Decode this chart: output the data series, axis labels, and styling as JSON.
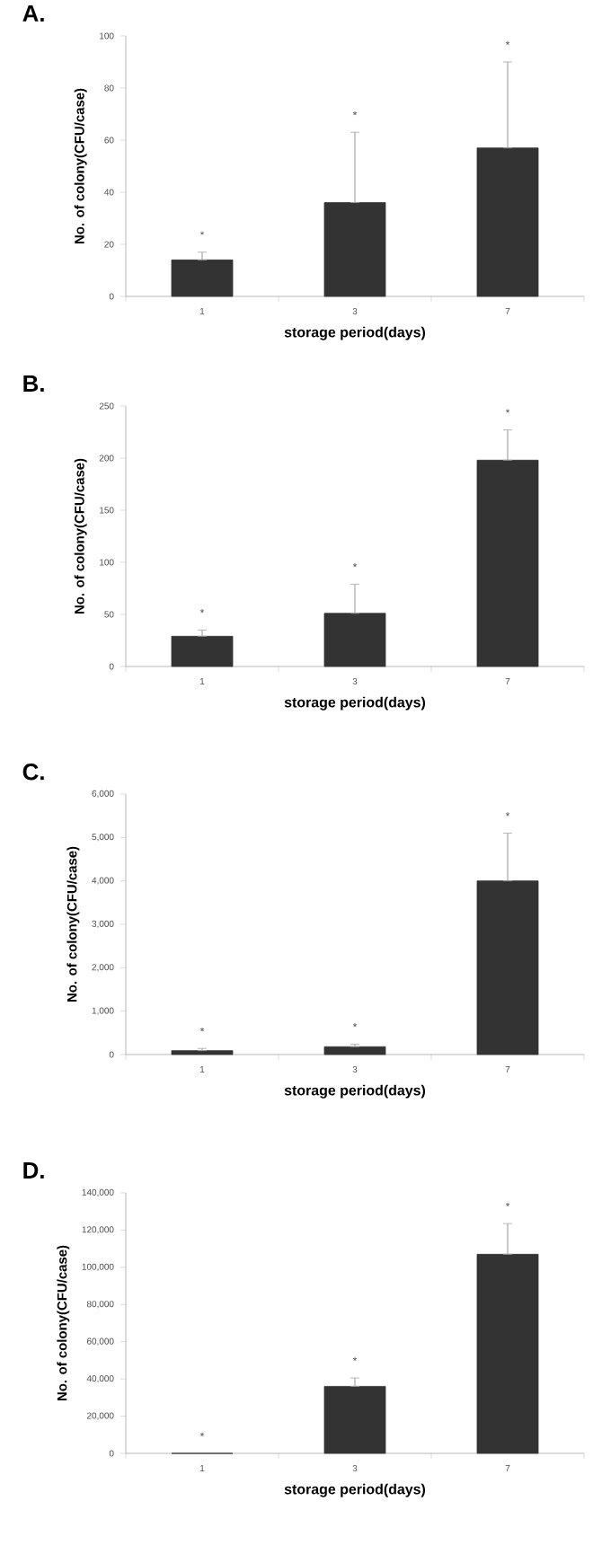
{
  "chart_data": [
    {
      "type": "bar",
      "title": "A.",
      "xlabel": "storage period(days)",
      "ylabel": "No. of colony(CFU/case)",
      "categories": [
        "1",
        "3",
        "7"
      ],
      "values": [
        14,
        36,
        57
      ],
      "errors": [
        [
          14,
          17
        ],
        [
          36,
          63
        ],
        [
          57,
          90
        ]
      ],
      "color": "#333333",
      "ylim": [
        0,
        100
      ],
      "yticks": [
        0,
        20,
        40,
        60,
        80,
        100
      ],
      "annotations": [
        "*",
        "*",
        "*"
      ]
    },
    {
      "type": "bar",
      "title": "B.",
      "xlabel": "storage period(days)",
      "ylabel": "No. of colony(CFU/case)",
      "categories": [
        "1",
        "3",
        "7"
      ],
      "values": [
        29,
        51,
        198
      ],
      "errors": [
        [
          29,
          35
        ],
        [
          51,
          79
        ],
        [
          198,
          227
        ]
      ],
      "color": "#333333",
      "ylim": [
        0,
        250
      ],
      "yticks": [
        0,
        50,
        100,
        150,
        200,
        250
      ],
      "annotations": [
        "*",
        "*",
        "*"
      ]
    },
    {
      "type": "bar",
      "title": "C.",
      "xlabel": "storage period(days)",
      "ylabel": "No. of colony(CFU/case)",
      "categories": [
        "1",
        "3",
        "7"
      ],
      "values": [
        90,
        180,
        4000
      ],
      "errors": [
        [
          90,
          140
        ],
        [
          180,
          240
        ],
        [
          4000,
          5100
        ]
      ],
      "color": "#333333",
      "ylim": [
        0,
        6000
      ],
      "yticks": [
        0,
        {
          "value": 1000,
          "label": "1,000"
        },
        {
          "value": 2000,
          "label": "2,000"
        },
        {
          "value": 3000,
          "label": "3,000"
        },
        {
          "value": 4000,
          "label": "4,000"
        },
        {
          "value": 5000,
          "label": "5,000"
        },
        {
          "value": 6000,
          "label": "6,000"
        }
      ],
      "annotations": [
        "*",
        "*",
        "*"
      ]
    },
    {
      "type": "bar",
      "title": "D.",
      "xlabel": "storage period(days)",
      "ylabel": "No. of colony(CFU/case)",
      "categories": [
        "1",
        "3",
        "7"
      ],
      "values": [
        0,
        36000,
        107000
      ],
      "errors": [
        null,
        [
          36000,
          40500
        ],
        [
          107000,
          123500
        ]
      ],
      "color": "#333333",
      "ylim": [
        0,
        140000
      ],
      "yticks": [
        0,
        {
          "value": 20000,
          "label": "20,000"
        },
        {
          "value": 40000,
          "label": "40,000"
        },
        {
          "value": 60000,
          "label": "60,000"
        },
        {
          "value": 80000,
          "label": "80,000"
        },
        {
          "value": 100000,
          "label": "100,000"
        },
        {
          "value": 120000,
          "label": "120,000"
        },
        {
          "value": 140000,
          "label": "140,000"
        }
      ],
      "annotations": [
        "*",
        "*",
        "*"
      ]
    }
  ]
}
